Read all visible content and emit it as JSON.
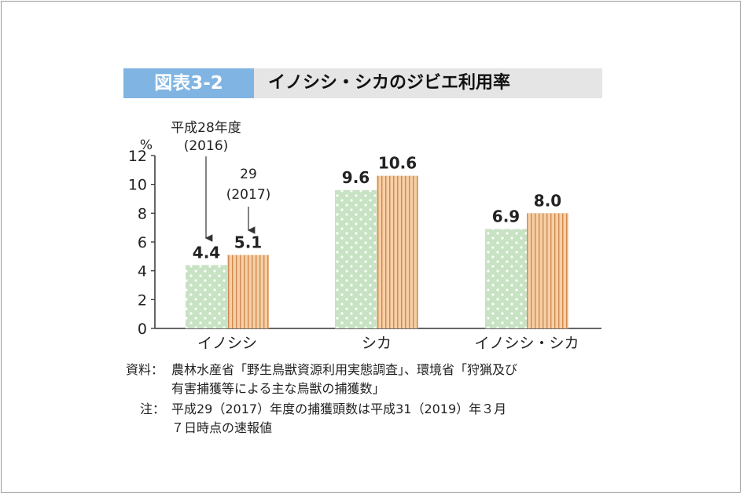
{
  "header": {
    "figure_label": "図表3-2",
    "title": "イノシシ・シカのジビエ利用率"
  },
  "chart_data": {
    "type": "bar",
    "ylabel": "%",
    "ylim": [
      0,
      12
    ],
    "yticks": [
      0,
      2,
      4,
      6,
      8,
      10,
      12
    ],
    "categories": [
      "イノシシ",
      "シカ",
      "イノシシ・シカ"
    ],
    "series": [
      {
        "name": "平成28年度(2016)",
        "values": [
          4.4,
          9.6,
          6.9
        ],
        "value_labels": [
          "4.4",
          "9.6",
          "6.9"
        ]
      },
      {
        "name": "29(2017)",
        "values": [
          5.1,
          10.6,
          8.0
        ],
        "value_labels": [
          "5.1",
          "10.6",
          "8.0"
        ]
      }
    ],
    "annotations": [
      {
        "series_index": 0,
        "lines": [
          "平成28年度",
          "(2016)"
        ]
      },
      {
        "series_index": 1,
        "lines": [
          "29",
          "(2017)"
        ]
      }
    ],
    "colors": {
      "series0_fill": "#c8e2c4",
      "series0_dot": "#ffffff",
      "series1_fill": "#f6cfa6",
      "series1_stripe": "#d08a52",
      "axis": "#333333"
    }
  },
  "notes": {
    "source_label": "資料：",
    "source_line1": "農林水産省「野生鳥獣資源利用実態調査」、環境省「狩猟及び",
    "source_line2": "有害捕獲等による主な鳥獣の捕獲数」",
    "note_label": "注：",
    "note_line1": "平成29（2017）年度の捕獲頭数は平成31（2019）年３月",
    "note_line2": "７日時点の速報値"
  }
}
